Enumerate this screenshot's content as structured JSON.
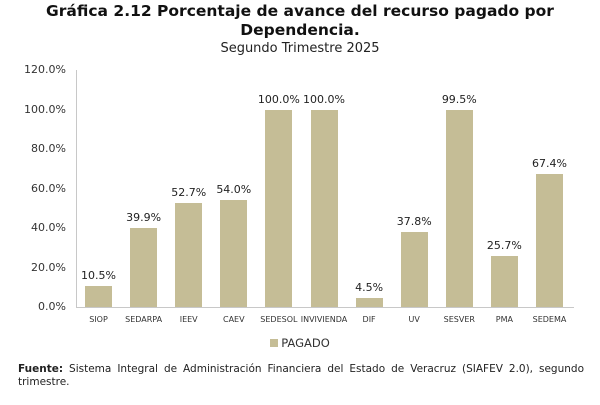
{
  "header": {
    "title_line1": "Gráfica 2.12 Porcentaje de avance del recurso pagado por",
    "title_line2": "Dependencia.",
    "subtitle": "Segundo Trimestre 2025"
  },
  "legend": {
    "label": "PAGADO",
    "color": "#c5bd96"
  },
  "source": {
    "prefix": "Fuente:",
    "text": " Sistema Integral de Administración Financiera del Estado de Veracruz (SIAFEV 2.0), segundo trimestre."
  },
  "chart_data": {
    "type": "bar",
    "title": "Gráfica 2.12 Porcentaje de avance del recurso pagado por Dependencia.",
    "subtitle": "Segundo Trimestre 2025",
    "xlabel": "",
    "ylabel": "",
    "ylim": [
      0,
      120
    ],
    "yticks": [
      "0.0%",
      "20.0%",
      "40.0%",
      "60.0%",
      "80.0%",
      "100.0%",
      "120.0%"
    ],
    "grid": false,
    "legend_position": "bottom",
    "categories": [
      "SIOP",
      "SEDARPA",
      "IEEV",
      "CAEV",
      "SEDESOL",
      "INVIVIENDA",
      "DIF",
      "UV",
      "SESVER",
      "PMA",
      "SEDEMA"
    ],
    "series": [
      {
        "name": "PAGADO",
        "color": "#c5bd96",
        "values": [
          10.5,
          39.9,
          52.7,
          54.0,
          100.0,
          100.0,
          4.5,
          37.8,
          99.5,
          25.7,
          67.4
        ],
        "labels": [
          "10.5%",
          "39.9%",
          "52.7%",
          "54.0%",
          "100.0%",
          "100.0%",
          "4.5%",
          "37.8%",
          "99.5%",
          "25.7%",
          "67.4%"
        ]
      }
    ]
  }
}
